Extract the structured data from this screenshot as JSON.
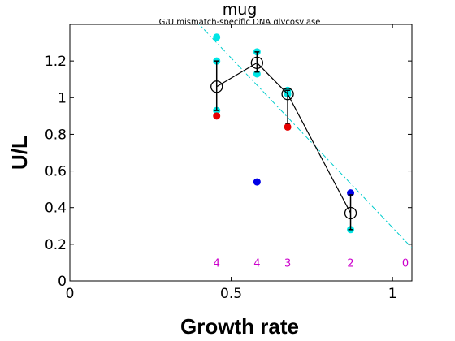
{
  "chart_data": {
    "type": "scatter",
    "title": "mug",
    "subtitle": "G/U mismatch-specific DNA glycosylase",
    "xlabel": "Growth rate",
    "ylabel": "U/L",
    "xlim": [
      0,
      1.06
    ],
    "ylim": [
      0,
      1.4
    ],
    "x_ticks": [
      0,
      0.5,
      1
    ],
    "x_tick_labels": [
      "0",
      "0.5",
      "1"
    ],
    "y_ticks": [
      0,
      0.2,
      0.4,
      0.6,
      0.8,
      1,
      1.2
    ],
    "y_tick_labels": [
      "0",
      "0.2",
      "0.4",
      "0.6",
      "0.8",
      "1",
      "1.2"
    ],
    "grid": false,
    "colors": {
      "cyan": "#00e6e6",
      "red": "#e60000",
      "blue": "#0000e6",
      "mean": "#000000",
      "fit_line": "#00cccc",
      "counts": "#cc00cc"
    },
    "series": [
      {
        "color": "cyan",
        "points": [
          [
            0.455,
            1.33
          ],
          [
            0.455,
            1.2
          ],
          [
            0.455,
            0.93
          ],
          [
            0.58,
            1.25
          ],
          [
            0.58,
            1.13
          ],
          [
            0.675,
            1.04
          ],
          [
            0.675,
            1.02
          ],
          [
            0.87,
            0.28
          ]
        ]
      },
      {
        "color": "red",
        "points": [
          [
            0.455,
            0.9
          ],
          [
            0.675,
            0.84
          ]
        ]
      },
      {
        "color": "blue",
        "points": [
          [
            0.58,
            0.54
          ],
          [
            0.87,
            0.48
          ]
        ]
      }
    ],
    "means": [
      {
        "x": 0.455,
        "y": 1.06,
        "err_low": 0.93,
        "err_high": 1.2
      },
      {
        "x": 0.58,
        "y": 1.19,
        "err_low": 1.14,
        "err_high": 1.25
      },
      {
        "x": 0.675,
        "y": 1.02,
        "err_low": 0.86,
        "err_high": 1.04
      },
      {
        "x": 0.87,
        "y": 0.37,
        "err_low": 0.28,
        "err_high": 0.47
      }
    ],
    "fit_line": {
      "style": "dash-dot",
      "points": [
        [
          0.39,
          1.42
        ],
        [
          1.06,
          0.18
        ]
      ]
    },
    "counts": [
      {
        "x": 0.455,
        "label": "4"
      },
      {
        "x": 0.58,
        "label": "4"
      },
      {
        "x": 0.675,
        "label": "3"
      },
      {
        "x": 0.87,
        "label": "2"
      },
      {
        "x": 1.04,
        "label": "0"
      }
    ],
    "counts_y": 0.1
  }
}
